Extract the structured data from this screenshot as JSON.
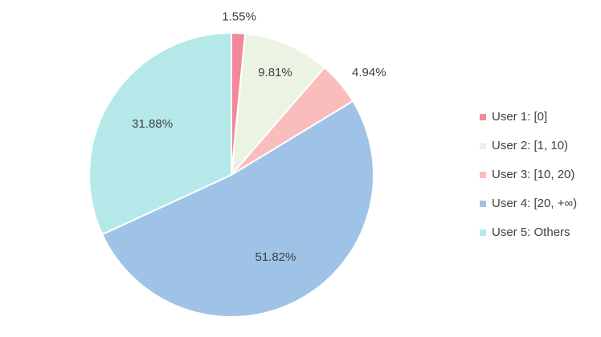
{
  "chart_data": {
    "type": "pie",
    "categories": [
      "User 1: [0]",
      "User 2: [1, 10)",
      "User 3: [10, 20)",
      "User 4: [20, +∞)",
      "User 5: Others"
    ],
    "values": [
      1.55,
      9.81,
      4.94,
      51.82,
      31.88
    ],
    "value_labels": [
      "1.55%",
      "9.81%",
      "4.94%",
      "51.82%",
      "31.88%"
    ],
    "colors": [
      "#f4889a",
      "#ebf4e2",
      "#fbbcbc",
      "#9fc3e6",
      "#b5e9e9"
    ],
    "legend": "right"
  }
}
